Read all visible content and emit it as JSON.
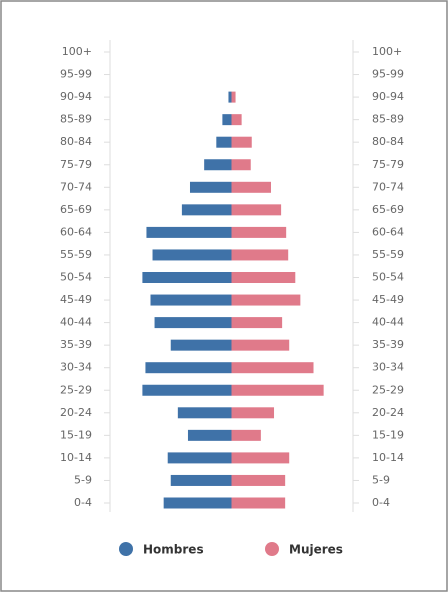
{
  "chart_data": {
    "type": "pyramid",
    "categories": [
      "100+",
      "95-99",
      "90-94",
      "85-89",
      "80-84",
      "75-79",
      "70-74",
      "65-69",
      "60-64",
      "55-59",
      "50-54",
      "45-49",
      "40-44",
      "35-39",
      "30-34",
      "25-29",
      "20-24",
      "15-19",
      "10-14",
      "5-9",
      "0-4"
    ],
    "series": [
      {
        "name": "Hombres",
        "color": "#3f72a8",
        "values": [
          0,
          0,
          3,
          9,
          15,
          27,
          41,
          49,
          84,
          78,
          88,
          80,
          76,
          60,
          85,
          88,
          53,
          43,
          63,
          60,
          67
        ]
      },
      {
        "name": "Mujeres",
        "color": "#e07a8a",
        "values": [
          0,
          0,
          4,
          10,
          20,
          19,
          39,
          49,
          54,
          56,
          63,
          68,
          50,
          57,
          81,
          91,
          42,
          29,
          57,
          53,
          53
        ]
      }
    ],
    "xlim": [
      -120,
      120
    ]
  }
}
